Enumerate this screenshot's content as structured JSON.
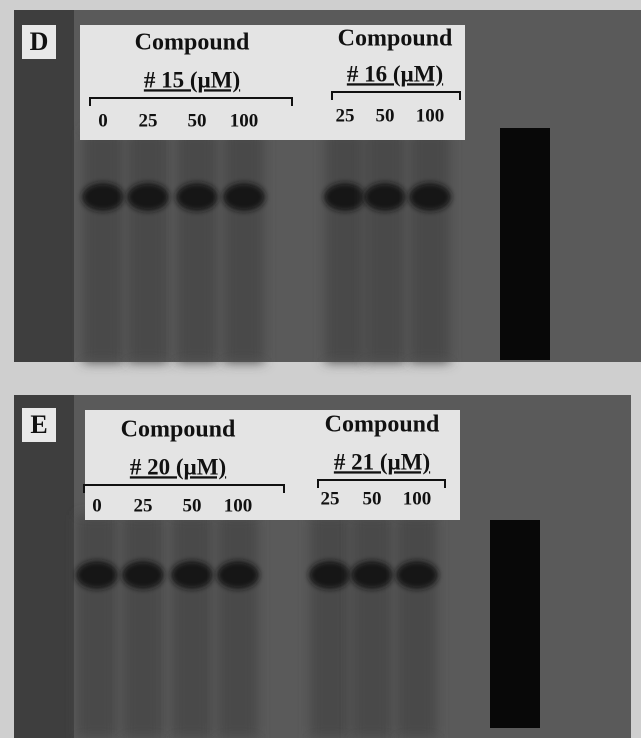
{
  "panels": [
    {
      "label": "D",
      "groups": [
        {
          "title": "Compound",
          "subtitle": "# 15 (µM)",
          "lanes": [
            "0",
            "25",
            "50",
            "100"
          ]
        },
        {
          "title": "Compound",
          "subtitle": "# 16 (µM)",
          "lanes": [
            "25",
            "50",
            "100"
          ]
        }
      ]
    },
    {
      "label": "E",
      "groups": [
        {
          "title": "Compound",
          "subtitle": "# 20 (µM)",
          "lanes": [
            "0",
            "25",
            "50",
            "100"
          ]
        },
        {
          "title": "Compound",
          "subtitle": "# 21 (µM)",
          "lanes": [
            "25",
            "50",
            "100"
          ]
        }
      ]
    }
  ]
}
